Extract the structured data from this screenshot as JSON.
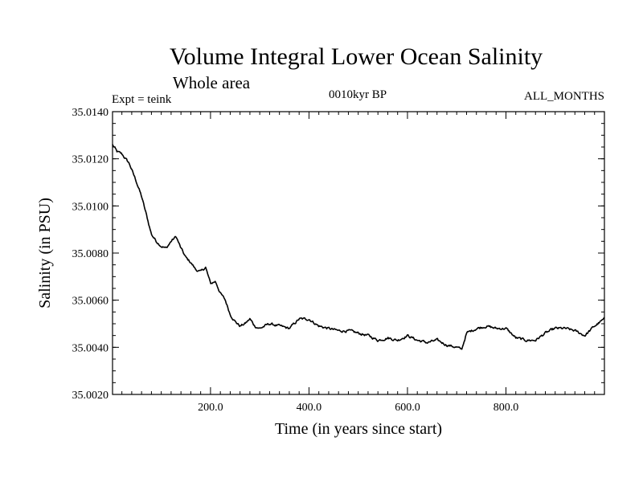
{
  "chart_data": {
    "type": "line",
    "title": "Volume Integral Lower Ocean Salinity",
    "subtitle": "Whole area",
    "expt_label": "Expt = teink",
    "center_label": "0010kyr BP",
    "right_label": "ALL_MONTHS",
    "xlabel": "Time (in years since start)",
    "ylabel": "Salinity (in PSU)",
    "xlim": [
      1,
      1000
    ],
    "ylim": [
      35.002,
      35.014
    ],
    "xticks": [
      200,
      400,
      600,
      800
    ],
    "xtick_labels": [
      "200.0",
      "400.0",
      "600.0",
      "800.0"
    ],
    "yticks": [
      35.002,
      35.004,
      35.006,
      35.008,
      35.01,
      35.012,
      35.014
    ],
    "ytick_labels": [
      "35.0020",
      "35.0040",
      "35.0060",
      "35.0080",
      "35.0100",
      "35.0120",
      "35.0140"
    ],
    "grid": false,
    "series": [
      {
        "name": "Lower Ocean Salinity",
        "color": "#000000",
        "x": [
          1,
          10,
          20,
          35,
          50,
          60,
          70,
          80,
          90,
          100,
          110,
          120,
          130,
          140,
          150,
          160,
          170,
          180,
          190,
          200,
          210,
          220,
          230,
          240,
          250,
          260,
          270,
          280,
          290,
          300,
          320,
          340,
          360,
          380,
          400,
          420,
          440,
          460,
          480,
          500,
          520,
          540,
          560,
          580,
          600,
          620,
          640,
          660,
          680,
          700,
          710,
          720,
          740,
          760,
          780,
          800,
          820,
          840,
          860,
          880,
          900,
          920,
          940,
          960,
          980,
          1000
        ],
        "y": [
          35.0126,
          35.0123,
          35.0122,
          35.0118,
          35.011,
          35.0104,
          35.0096,
          35.0088,
          35.0085,
          35.0083,
          35.0082,
          35.0085,
          35.0087,
          35.0082,
          35.0078,
          35.0076,
          35.0073,
          35.0072,
          35.0074,
          35.0067,
          35.0068,
          35.0063,
          35.006,
          35.0054,
          35.0051,
          35.0049,
          35.005,
          35.0052,
          35.0049,
          35.0048,
          35.005,
          35.0049,
          35.0048,
          35.0052,
          35.0052,
          35.0049,
          35.0048,
          35.0047,
          35.0047,
          35.0046,
          35.0045,
          35.0043,
          35.0044,
          35.0043,
          35.0045,
          35.0043,
          35.0042,
          35.0043,
          35.0041,
          35.004,
          35.0039,
          35.0046,
          35.0048,
          35.0049,
          35.0048,
          35.0048,
          35.0044,
          35.0043,
          35.0043,
          35.0046,
          35.0048,
          35.0048,
          35.0047,
          35.0045,
          35.0049,
          35.0052
        ]
      }
    ]
  }
}
